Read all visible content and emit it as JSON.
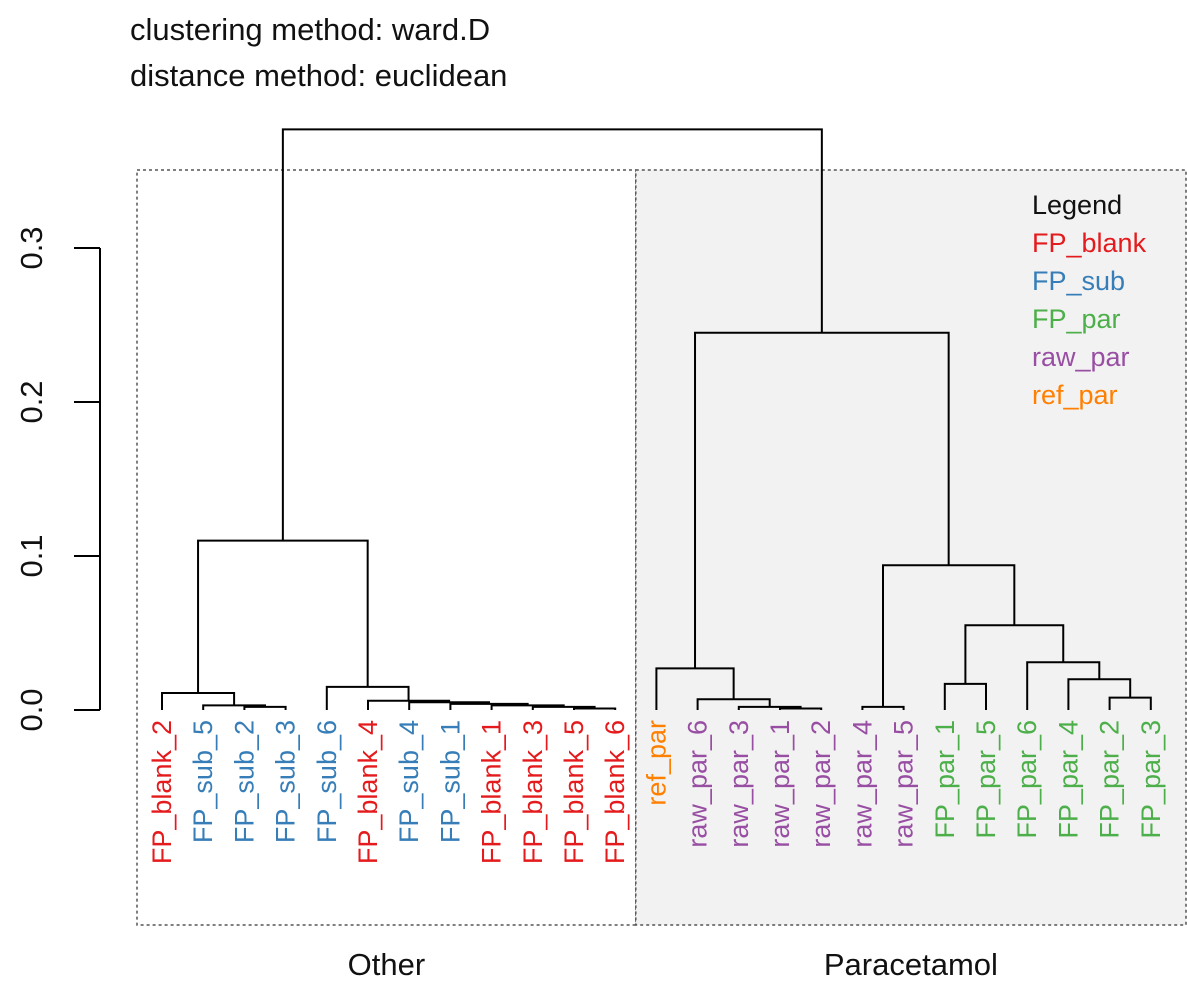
{
  "header": {
    "clustering": "clustering method: ward.D",
    "distance": "distance method: euclidean"
  },
  "colors": {
    "FP_blank": "#e41a1c",
    "FP_sub": "#377eb8",
    "FP_par": "#4daf4a",
    "raw_par": "#984ea3",
    "ref_par": "#ff7f00",
    "tree": "#000000",
    "panel_right_fill": "#f2f2f2",
    "panel_border": "#555555"
  },
  "chart_data": {
    "type": "dendrogram",
    "y_axis": {
      "ticks": [
        0.0,
        0.1,
        0.2,
        0.3
      ],
      "tick_labels": [
        "0.0",
        "0.1",
        "0.2",
        "0.3"
      ]
    },
    "leaves": [
      {
        "label": "FP_blank_2",
        "group": "FP_blank"
      },
      {
        "label": "FP_sub_5",
        "group": "FP_sub"
      },
      {
        "label": "FP_sub_2",
        "group": "FP_sub"
      },
      {
        "label": "FP_sub_3",
        "group": "FP_sub"
      },
      {
        "label": "FP_sub_6",
        "group": "FP_sub"
      },
      {
        "label": "FP_blank_4",
        "group": "FP_blank"
      },
      {
        "label": "FP_sub_4",
        "group": "FP_sub"
      },
      {
        "label": "FP_sub_1",
        "group": "FP_sub"
      },
      {
        "label": "FP_blank_1",
        "group": "FP_blank"
      },
      {
        "label": "FP_blank_3",
        "group": "FP_blank"
      },
      {
        "label": "FP_blank_5",
        "group": "FP_blank"
      },
      {
        "label": "FP_blank_6",
        "group": "FP_blank"
      },
      {
        "label": "ref_par",
        "group": "ref_par"
      },
      {
        "label": "raw_par_6",
        "group": "raw_par"
      },
      {
        "label": "raw_par_3",
        "group": "raw_par"
      },
      {
        "label": "raw_par_1",
        "group": "raw_par"
      },
      {
        "label": "raw_par_2",
        "group": "raw_par"
      },
      {
        "label": "raw_par_4",
        "group": "raw_par"
      },
      {
        "label": "raw_par_5",
        "group": "raw_par"
      },
      {
        "label": "FP_par_1",
        "group": "FP_par"
      },
      {
        "label": "FP_par_5",
        "group": "FP_par"
      },
      {
        "label": "FP_par_6",
        "group": "FP_par"
      },
      {
        "label": "FP_par_4",
        "group": "FP_par"
      },
      {
        "label": "FP_par_2",
        "group": "FP_par"
      },
      {
        "label": "FP_par_3",
        "group": "FP_par"
      }
    ],
    "merges": [
      {
        "id": "n1",
        "left": 2,
        "right": 3,
        "height": 0.002
      },
      {
        "id": "n2",
        "left": 1,
        "right": "n1",
        "height": 0.003
      },
      {
        "id": "n3",
        "left": 0,
        "right": "n2",
        "height": 0.011
      },
      {
        "id": "n4",
        "left": 10,
        "right": 11,
        "height": 0.001
      },
      {
        "id": "n5",
        "left": 9,
        "right": "n4",
        "height": 0.002
      },
      {
        "id": "n6",
        "left": 8,
        "right": "n5",
        "height": 0.003
      },
      {
        "id": "n7",
        "left": 7,
        "right": "n6",
        "height": 0.004
      },
      {
        "id": "n8",
        "left": 6,
        "right": "n7",
        "height": 0.005
      },
      {
        "id": "n9",
        "left": 5,
        "right": "n8",
        "height": 0.006
      },
      {
        "id": "n10",
        "left": 4,
        "right": "n9",
        "height": 0.015
      },
      {
        "id": "n11",
        "left": "n3",
        "right": "n10",
        "height": 0.11
      },
      {
        "id": "n12",
        "left": 15,
        "right": 16,
        "height": 0.001
      },
      {
        "id": "n13",
        "left": 14,
        "right": "n12",
        "height": 0.002
      },
      {
        "id": "n14",
        "left": 13,
        "right": "n13",
        "height": 0.007
      },
      {
        "id": "n15",
        "left": 12,
        "right": "n14",
        "height": 0.027
      },
      {
        "id": "n16",
        "left": 17,
        "right": 18,
        "height": 0.002
      },
      {
        "id": "n17",
        "left": 19,
        "right": 20,
        "height": 0.017
      },
      {
        "id": "n18",
        "left": 23,
        "right": 24,
        "height": 0.008
      },
      {
        "id": "n19",
        "left": 22,
        "right": "n18",
        "height": 0.02
      },
      {
        "id": "n20",
        "left": 21,
        "right": "n19",
        "height": 0.031
      },
      {
        "id": "n21",
        "left": "n17",
        "right": "n20",
        "height": 0.055
      },
      {
        "id": "n22",
        "left": "n16",
        "right": "n21",
        "height": 0.094
      },
      {
        "id": "n23",
        "left": "n15",
        "right": "n22",
        "height": 0.245
      },
      {
        "id": "n24",
        "left": "n11",
        "right": "n23",
        "height": 0.377
      }
    ],
    "clusters": [
      {
        "label": "Other",
        "first_leaf": 0,
        "last_leaf": 11,
        "shaded": false
      },
      {
        "label": "Paracetamol",
        "first_leaf": 12,
        "last_leaf": 24,
        "shaded": true
      }
    ],
    "legend": {
      "title": "Legend",
      "placement": "top-right",
      "entries": [
        {
          "label": "FP_blank",
          "group": "FP_blank"
        },
        {
          "label": "FP_sub",
          "group": "FP_sub"
        },
        {
          "label": "FP_par",
          "group": "FP_par"
        },
        {
          "label": "raw_par",
          "group": "raw_par"
        },
        {
          "label": "ref_par",
          "group": "ref_par"
        }
      ]
    }
  }
}
